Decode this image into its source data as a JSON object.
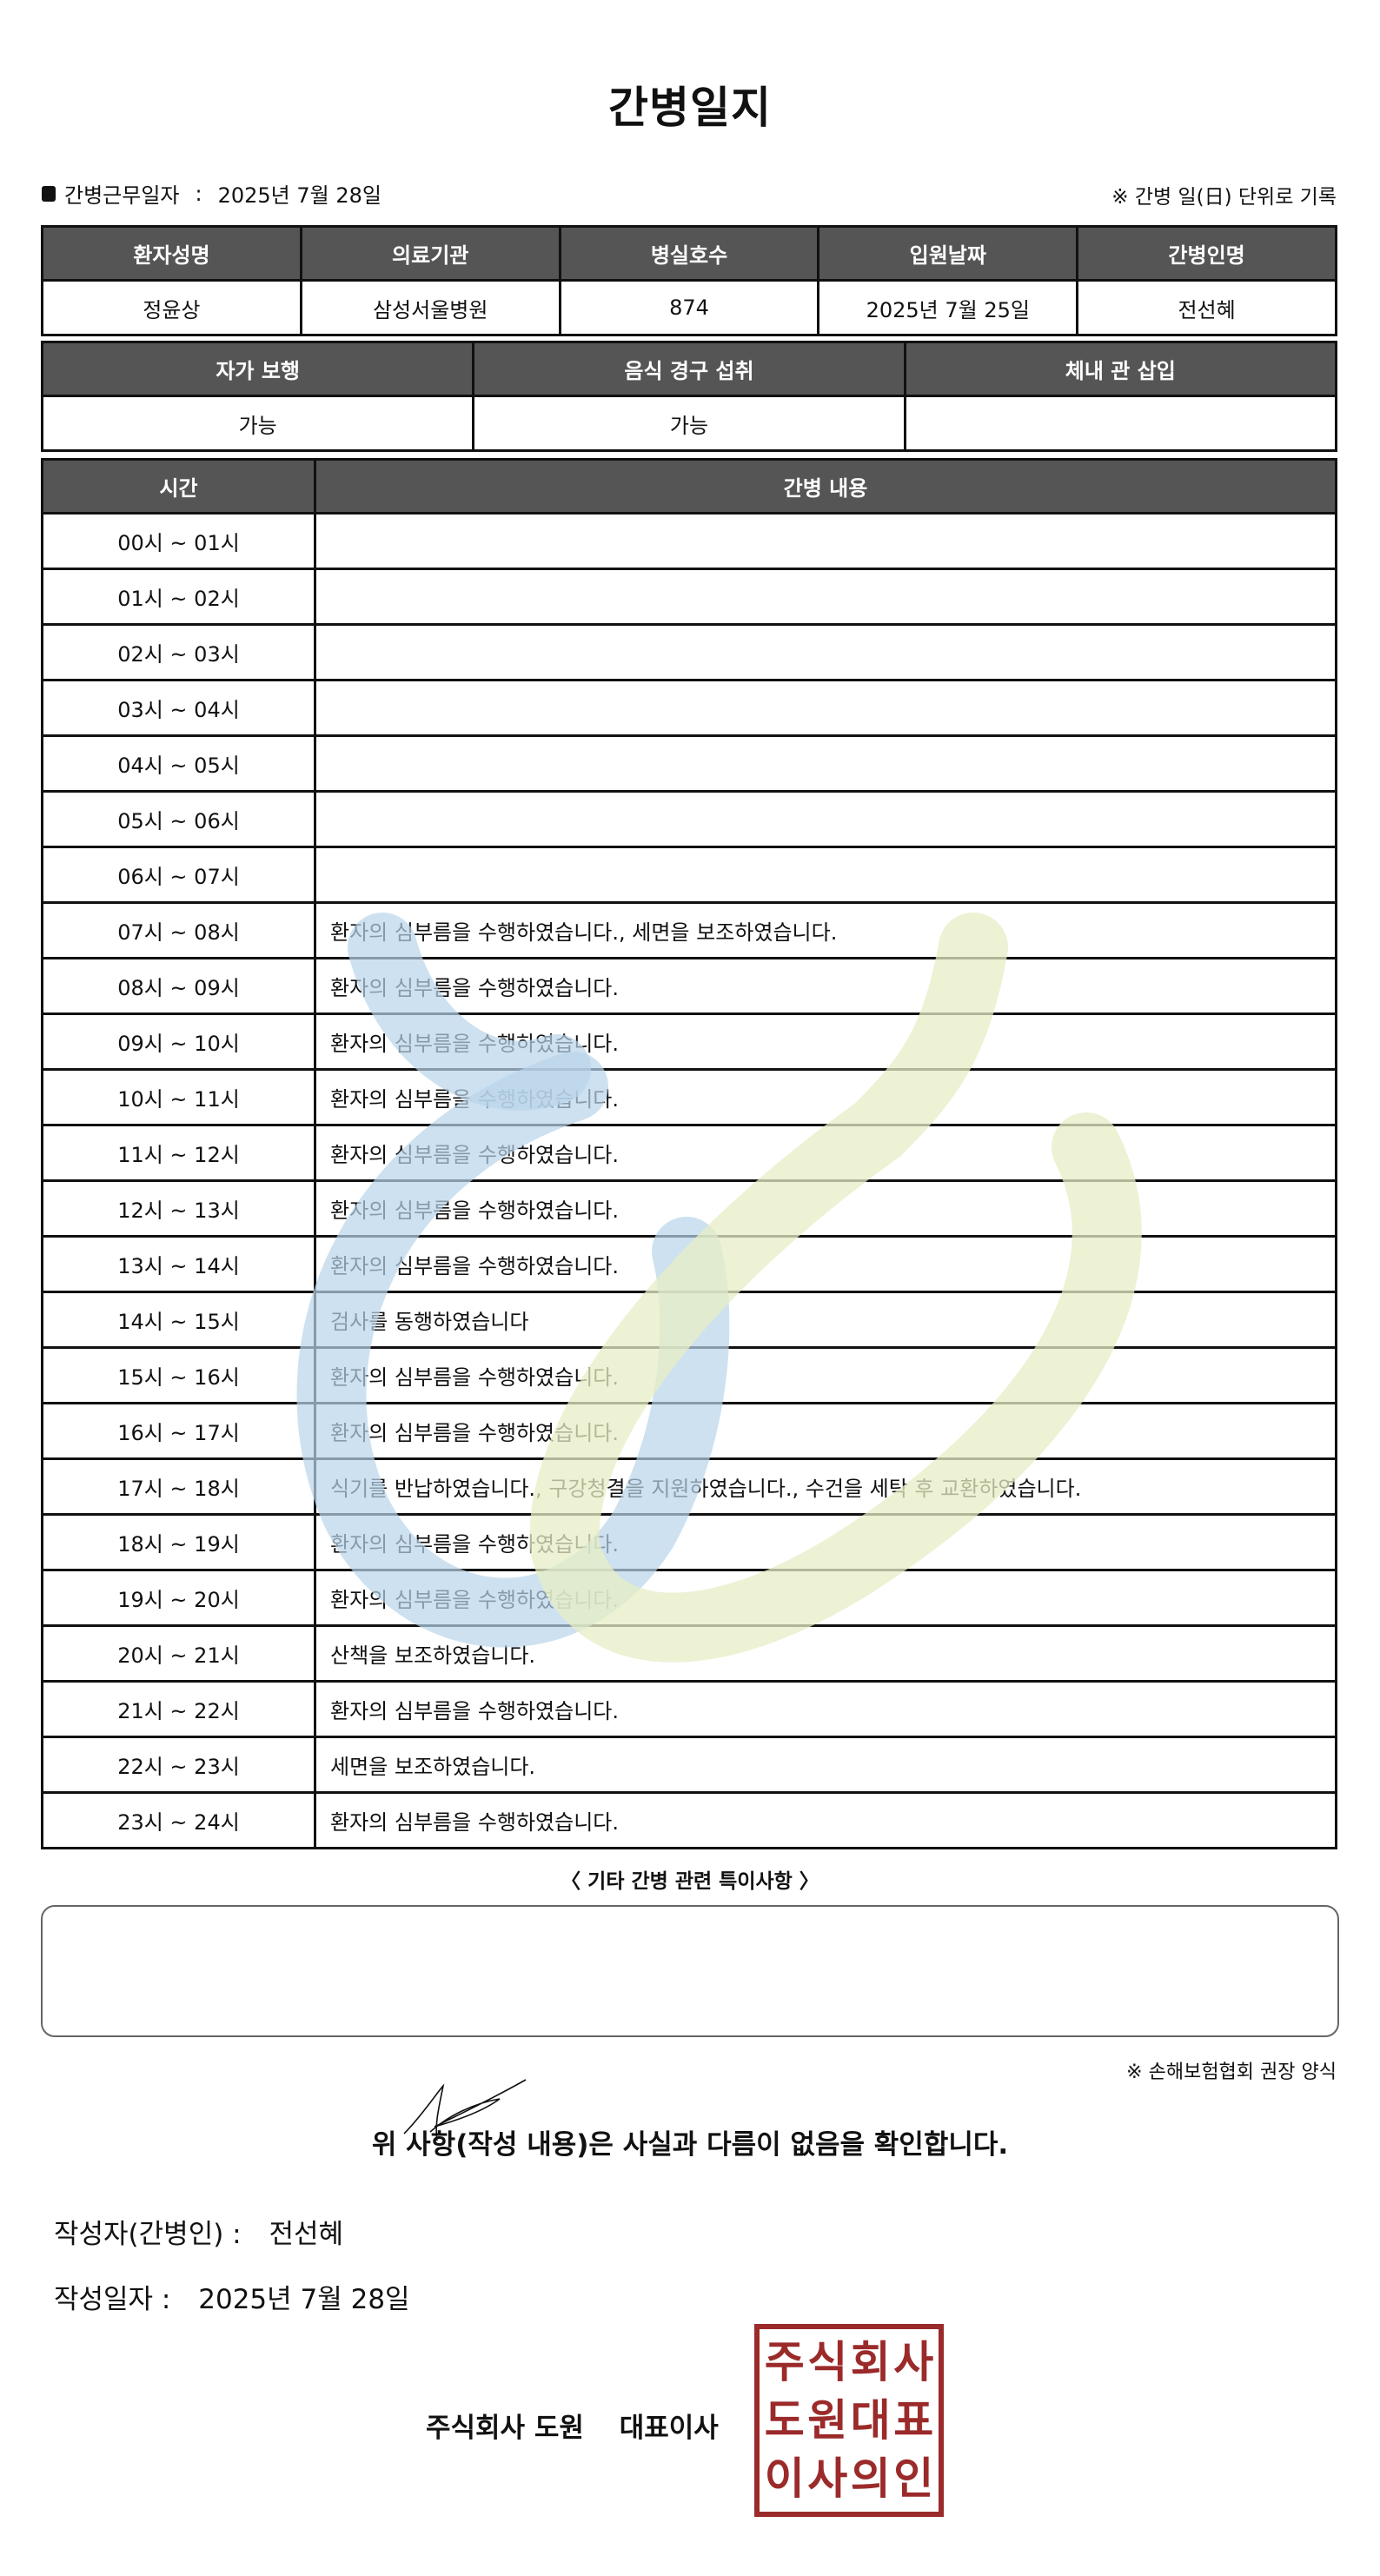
{
  "title": "간병일지",
  "work_date_label": "간병근무일자",
  "work_date_sep": ":",
  "work_date": "2025년 7월 28일",
  "day_note": "※ 간병 일(日) 단위로 기록",
  "patient_table": {
    "headers": [
      "환자성명",
      "의료기관",
      "병실호수",
      "입원날짜",
      "간병인명"
    ],
    "values": [
      "정윤상",
      "삼성서울병원",
      "874",
      "2025년 7월 25일",
      "전선혜"
    ]
  },
  "status_table": {
    "headers": [
      "자가 보행",
      "음식 경구 섭취",
      "체내 관 삽입"
    ],
    "values": [
      "가능",
      "가능",
      ""
    ]
  },
  "log_table": {
    "headers": [
      "시간",
      "간병 내용"
    ],
    "rows": [
      {
        "time": "00시 ~ 01시",
        "content": ""
      },
      {
        "time": "01시 ~ 02시",
        "content": ""
      },
      {
        "time": "02시 ~ 03시",
        "content": ""
      },
      {
        "time": "03시 ~ 04시",
        "content": ""
      },
      {
        "time": "04시 ~ 05시",
        "content": ""
      },
      {
        "time": "05시 ~ 06시",
        "content": ""
      },
      {
        "time": "06시 ~ 07시",
        "content": ""
      },
      {
        "time": "07시 ~ 08시",
        "content": "환자의 심부름을 수행하였습니다., 세면을 보조하였습니다."
      },
      {
        "time": "08시 ~ 09시",
        "content": "환자의 심부름을 수행하였습니다."
      },
      {
        "time": "09시 ~ 10시",
        "content": "환자의 심부름을 수행하였습니다."
      },
      {
        "time": "10시 ~ 11시",
        "content": "환자의 심부름을 수행하였습니다."
      },
      {
        "time": "11시 ~ 12시",
        "content": "환자의 심부름을 수행하였습니다."
      },
      {
        "time": "12시 ~ 13시",
        "content": "환자의 심부름을 수행하였습니다."
      },
      {
        "time": "13시 ~ 14시",
        "content": "환자의 심부름을 수행하였습니다."
      },
      {
        "time": "14시 ~ 15시",
        "content": "검사를 동행하였습니다"
      },
      {
        "time": "15시 ~ 16시",
        "content": "환자의 심부름을 수행하였습니다."
      },
      {
        "time": "16시 ~ 17시",
        "content": "환자의 심부름을 수행하였습니다."
      },
      {
        "time": "17시 ~ 18시",
        "content": "식기를 반납하였습니다., 구강청결을 지원하였습니다., 수건을 세탁 후 교환하였습니다."
      },
      {
        "time": "18시 ~ 19시",
        "content": "환자의 심부름을 수행하였습니다."
      },
      {
        "time": "19시 ~ 20시",
        "content": "환자의 심부름을 수행하였습니다."
      },
      {
        "time": "20시 ~ 21시",
        "content": "산책을 보조하였습니다."
      },
      {
        "time": "21시 ~ 22시",
        "content": "환자의 심부름을 수행하였습니다."
      },
      {
        "time": "22시 ~ 23시",
        "content": "세면을 보조하였습니다."
      },
      {
        "time": "23시 ~ 24시",
        "content": "환자의 심부름을 수행하였습니다."
      }
    ]
  },
  "other_notes_label": "〈 기타 간병 관련 특이사항 〉",
  "other_notes": "",
  "form_note": "※ 손해보험협회 권장 양식",
  "confirmation": "위 사항(작성 내용)은 사실과 다름이 없음을 확인합니다.",
  "writer_label": "작성자(간병인) :",
  "writer_name": "전선혜",
  "written_date_label": "작성일자 :",
  "written_date": "2025년 7월 28일",
  "company": "주식회사 도원",
  "representative": "대표이사",
  "stamp_text": [
    "주",
    "식",
    "회",
    "사",
    "도",
    "원",
    "대",
    "표",
    "이",
    "사",
    "의",
    "인"
  ],
  "colors": {
    "header_bg": "#555555",
    "stamp": "#9b2a2a",
    "watermark_blue": "#b9d4ea",
    "watermark_green": "#e6edc4"
  }
}
